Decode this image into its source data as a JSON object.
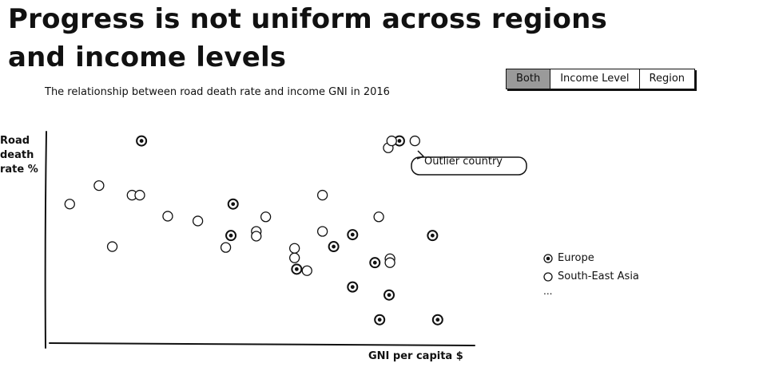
{
  "headline": "Progress is not uniform across regions and income levels",
  "toggle": {
    "options": [
      "Both",
      "Income Level",
      "Region"
    ],
    "active": "Both"
  },
  "callout": {
    "text": "Outlier country"
  },
  "legend": {
    "items": [
      {
        "label": "Europe",
        "marker": "dotted-circle"
      },
      {
        "label": "South-East Asia",
        "marker": "hollow-circle"
      }
    ],
    "more": "..."
  },
  "chart_data": {
    "type": "scatter",
    "title": "The relationship between road death rate and income GNI in 2016",
    "xlabel": "GNI per capita $",
    "ylabel": "Road death rate %",
    "xlim": [
      0,
      100
    ],
    "ylim": [
      0,
      100
    ],
    "grid": false,
    "legend_position": "right",
    "note": "Axes show no tick labels; values are relative positions on a 0-100 scale.",
    "series": [
      {
        "name": "Europe",
        "marker": "dotted-circle",
        "points": [
          {
            "x": 21.4,
            "y": 91.7
          },
          {
            "x": 42.7,
            "y": 62.6
          },
          {
            "x": 42.2,
            "y": 48.1
          },
          {
            "x": 57.5,
            "y": 32.6
          },
          {
            "x": 66.1,
            "y": 43.0
          },
          {
            "x": 70.5,
            "y": 48.5
          },
          {
            "x": 70.5,
            "y": 24.4
          },
          {
            "x": 75.7,
            "y": 35.6
          },
          {
            "x": 76.8,
            "y": 9.3
          },
          {
            "x": 79.0,
            "y": 20.7
          },
          {
            "x": 89.1,
            "y": 48.1
          },
          {
            "x": 90.3,
            "y": 9.3
          },
          {
            "x": 81.4,
            "y": 91.7
          }
        ]
      },
      {
        "name": "South-East Asia",
        "marker": "hollow-circle",
        "points": [
          {
            "x": 4.7,
            "y": 62.6
          },
          {
            "x": 11.5,
            "y": 71.1
          },
          {
            "x": 14.6,
            "y": 43.0
          },
          {
            "x": 19.2,
            "y": 66.7
          },
          {
            "x": 21.0,
            "y": 66.7
          },
          {
            "x": 27.5,
            "y": 57.0
          },
          {
            "x": 34.5,
            "y": 54.8
          },
          {
            "x": 41.0,
            "y": 42.6
          },
          {
            "x": 48.1,
            "y": 50.0
          },
          {
            "x": 48.1,
            "y": 47.8
          },
          {
            "x": 50.3,
            "y": 56.7
          },
          {
            "x": 57.0,
            "y": 42.2
          },
          {
            "x": 57.0,
            "y": 37.8
          },
          {
            "x": 59.9,
            "y": 31.9
          },
          {
            "x": 63.5,
            "y": 66.7
          },
          {
            "x": 63.5,
            "y": 50.0
          },
          {
            "x": 76.6,
            "y": 56.7
          },
          {
            "x": 79.2,
            "y": 37.4
          },
          {
            "x": 79.2,
            "y": 35.6
          },
          {
            "x": 78.8,
            "y": 88.5
          },
          {
            "x": 79.6,
            "y": 91.7
          },
          {
            "x": 85.0,
            "y": 91.7
          }
        ]
      }
    ]
  }
}
